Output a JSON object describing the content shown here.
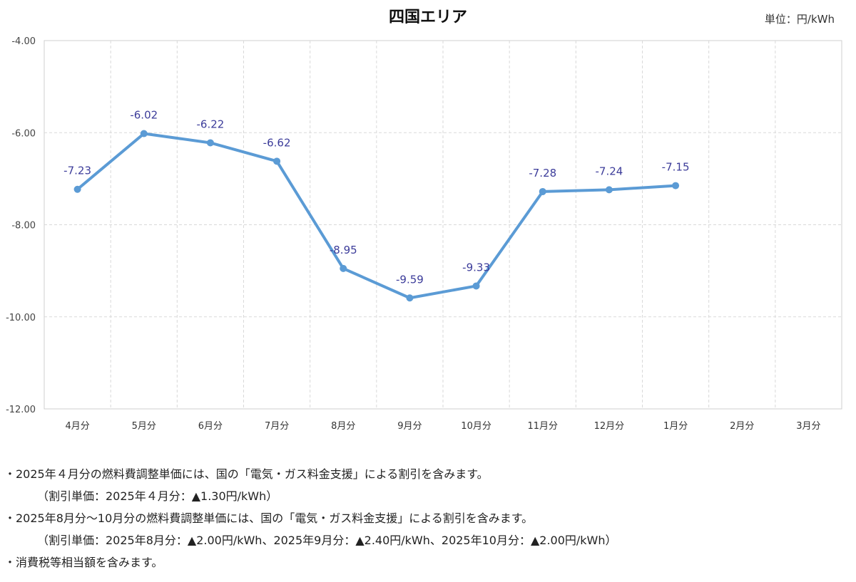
{
  "unit_label": "単位：円/kWh",
  "chart_data": {
    "type": "line",
    "title": "四国エリア",
    "categories": [
      "4月分",
      "5月分",
      "6月分",
      "7月分",
      "8月分",
      "9月分",
      "10月分",
      "11月分",
      "12月分",
      "1月分",
      "2月分",
      "3月分"
    ],
    "series": [
      {
        "values": [
          -7.23,
          -6.02,
          -6.22,
          -6.62,
          -8.95,
          -9.59,
          -9.33,
          -7.28,
          -7.24,
          -7.15,
          null,
          null
        ]
      }
    ],
    "data_labels": [
      "-7.23",
      "-6.02",
      "-6.22",
      "-6.62",
      "-8.95",
      "-9.59",
      "-9.33",
      "-7.28",
      "-7.24",
      "-7.15"
    ],
    "y_ticks": [
      "-4.00",
      "-6.00",
      "-8.00",
      "-10.00",
      "-12.00"
    ],
    "ylim": [
      -12,
      -4
    ],
    "grid": true,
    "line_color": "#5B9BD5",
    "label_color": "#3C3C9A"
  },
  "notes": [
    "・2025年４月分の燃料費調整単価には、国の「電気・ガス料金支援」による割引を含みます。",
    "（割引単価：2025年４月分：▲1.30円/kWh）",
    "・2025年8月分～10月分の燃料費調整単価には、国の「電気・ガス料金支援」による割引を含みます。",
    "（割引単価：2025年8月分：▲2.00円/kWh、2025年9月分：▲2.40円/kWh、2025年10月分：▲2.00円/kWh）",
    "・消費税等相当額を含みます。"
  ]
}
